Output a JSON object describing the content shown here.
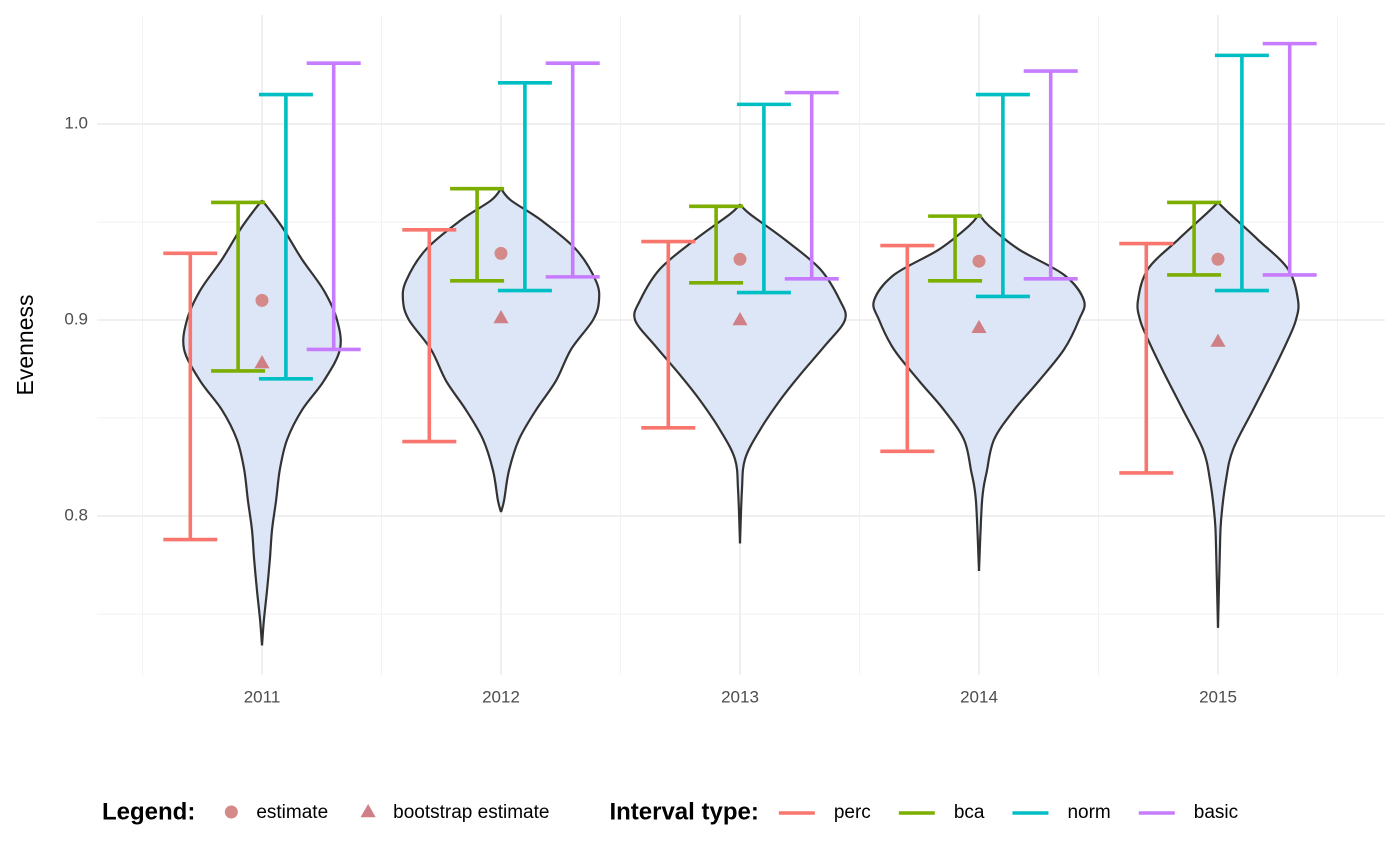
{
  "chart_data": {
    "type": "violin",
    "y_label": "Evenness",
    "categories": [
      "2011",
      "2012",
      "2013",
      "2014",
      "2015"
    ],
    "ylim": [
      0.7189,
      1.0556
    ],
    "yticks": [
      0.8,
      0.9,
      {
        "value": 1,
        "label": "1.0"
      }
    ],
    "y_minor_ticks": [
      0.75,
      0.85,
      0.95
    ],
    "grid": true,
    "violin_fill": "#dde6f7",
    "violin_stroke": "#333333",
    "violins": [
      {
        "y": [
          0.961,
          0.956,
          0.946,
          0.931,
          0.915,
          0.9,
          0.885,
          0.869,
          0.854,
          0.839,
          0.824,
          0.808,
          0.793,
          0.778,
          0.762,
          0.747,
          0.734
        ],
        "half_width": [
          0,
          0.033,
          0.092,
          0.167,
          0.259,
          0.314,
          0.326,
          0.259,
          0.167,
          0.105,
          0.075,
          0.059,
          0.042,
          0.033,
          0.021,
          0.008,
          0
        ]
      },
      {
        "y": [
          0.967,
          0.961,
          0.951,
          0.936,
          0.92,
          0.91,
          0.9,
          0.885,
          0.869,
          0.854,
          0.839,
          0.823,
          0.808,
          0.802
        ],
        "half_width": [
          0,
          0.042,
          0.167,
          0.314,
          0.397,
          0.41,
          0.385,
          0.293,
          0.23,
          0.146,
          0.075,
          0.033,
          0.013,
          0
        ]
      },
      {
        "y": [
          0.959,
          0.954,
          0.941,
          0.926,
          0.91,
          0.9,
          0.887,
          0.872,
          0.859,
          0.844,
          0.829,
          0.813,
          0.786
        ],
        "half_width": [
          0,
          0.042,
          0.188,
          0.335,
          0.418,
          0.439,
          0.356,
          0.251,
          0.167,
          0.084,
          0.021,
          0.008,
          0
        ]
      },
      {
        "y": [
          0.954,
          0.948,
          0.936,
          0.923,
          0.91,
          0.9,
          0.885,
          0.869,
          0.854,
          0.839,
          0.823,
          0.808,
          0.772
        ],
        "half_width": [
          0,
          0.042,
          0.167,
          0.356,
          0.439,
          0.418,
          0.356,
          0.251,
          0.146,
          0.063,
          0.033,
          0.013,
          0
        ]
      },
      {
        "y": [
          0.96,
          0.955,
          0.941,
          0.926,
          0.91,
          0.9,
          0.89,
          0.874,
          0.854,
          0.834,
          0.818,
          0.798,
          0.783,
          0.743
        ],
        "half_width": [
          0,
          0.042,
          0.167,
          0.293,
          0.335,
          0.326,
          0.293,
          0.23,
          0.146,
          0.063,
          0.033,
          0.013,
          0.008,
          0
        ]
      }
    ],
    "interval_legend_title": "Interval type:",
    "series": [
      {
        "name": "perc",
        "color": "#F8766D",
        "lower": [
          0.788,
          0.838,
          0.845,
          0.833,
          0.822
        ],
        "upper": [
          0.934,
          0.946,
          0.94,
          0.938,
          0.939
        ]
      },
      {
        "name": "bca",
        "color": "#7CAE00",
        "lower": [
          0.874,
          0.92,
          0.919,
          0.92,
          0.923
        ],
        "upper": [
          0.96,
          0.967,
          0.958,
          0.953,
          0.96
        ]
      },
      {
        "name": "norm",
        "color": "#00BFC4",
        "lower": [
          0.87,
          0.915,
          0.914,
          0.912,
          0.915
        ],
        "upper": [
          1.015,
          1.021,
          1.01,
          1.015,
          1.035
        ]
      },
      {
        "name": "basic",
        "color": "#C77CFF",
        "lower": [
          0.885,
          0.922,
          0.921,
          0.921,
          0.923
        ],
        "upper": [
          1.031,
          1.031,
          1.016,
          1.027,
          1.041
        ]
      }
    ],
    "point_legend_title": "Legend:",
    "points": [
      {
        "name": "estimate",
        "shape": "circle",
        "color": "#d58a8a",
        "values": [
          0.91,
          0.934,
          0.931,
          0.93,
          0.931
        ]
      },
      {
        "name": "bootstrap estimate",
        "shape": "triangle",
        "color": "#cf7f86",
        "values": [
          0.878,
          0.901,
          0.9,
          0.896,
          0.889
        ]
      }
    ]
  }
}
